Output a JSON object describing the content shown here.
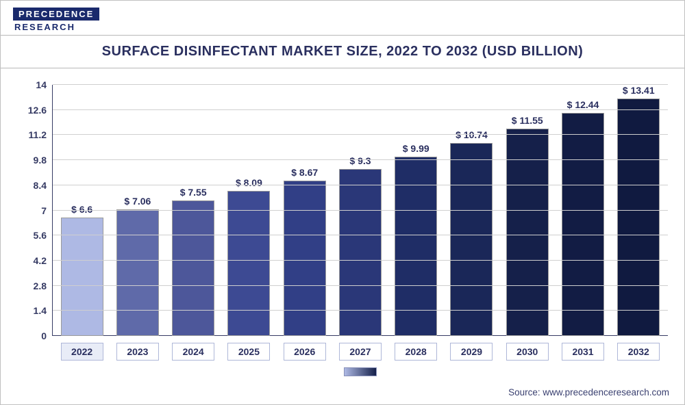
{
  "brand": {
    "top": "PRECEDENCE",
    "bottom": "RESEARCH"
  },
  "title": "SURFACE DISINFECTANT MARKET SIZE, 2022 TO 2032 (USD BILLION)",
  "source_label": "Source: www.precedenceresearch.com",
  "chart": {
    "type": "bar",
    "ylim": [
      0,
      14
    ],
    "ytick_step": 1.4,
    "yticks": [
      0,
      1.4,
      2.8,
      4.2,
      5.6,
      7,
      8.4,
      9.8,
      11.2,
      12.6,
      14
    ],
    "grid_color": "#cfcfcf",
    "axis_color": "#353a63",
    "background_color": "#ffffff",
    "value_prefix": "$ ",
    "bar_width": 0.72,
    "label_fontsize": 14,
    "value_fontsize": 14,
    "categories": [
      "2022",
      "2023",
      "2024",
      "2025",
      "2026",
      "2027",
      "2028",
      "2029",
      "2030",
      "2031",
      "2032"
    ],
    "values": [
      6.6,
      7.06,
      7.55,
      8.09,
      8.67,
      9.3,
      9.99,
      10.74,
      11.55,
      12.44,
      13.41
    ],
    "bar_colors": [
      "#aeb9e4",
      "#5f6aa9",
      "#4d579a",
      "#3d4a93",
      "#313f86",
      "#2a3778",
      "#1f2d66",
      "#1a2758",
      "#15204a",
      "#121c44",
      "#101a40"
    ],
    "x_label_border_color": "#aeb7d8",
    "title_color": "#2a2f5f",
    "legend_gradient": [
      "#aeb9e4",
      "#15204a"
    ]
  }
}
